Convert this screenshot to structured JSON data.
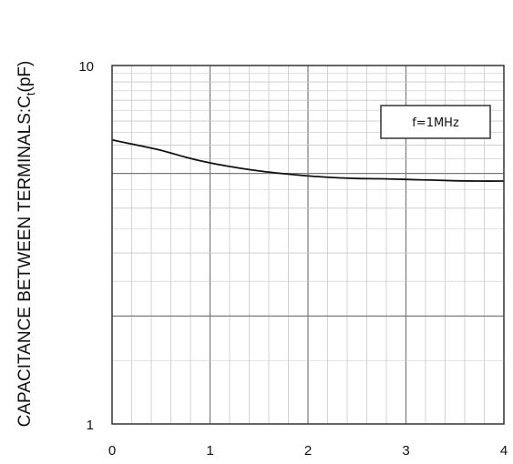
{
  "chart_data": {
    "type": "line",
    "title": "",
    "xlabel": "",
    "ylabel_main": "CAPACITANCE BETWEEN TERMINALS:C",
    "ylabel_sub": "t",
    "ylabel_unit": "(pF)",
    "x_scale": "linear",
    "y_scale": "log",
    "xlim": [
      0,
      4
    ],
    "ylim": [
      1,
      10
    ],
    "x_ticks": [
      "0",
      "1",
      "2",
      "3",
      "4"
    ],
    "y_ticks": [
      "1",
      "10"
    ],
    "grid": true,
    "legend_placement": "top-right",
    "annotation": "f=1MHz",
    "series": [
      {
        "x": [
          0,
          0.25,
          0.5,
          0.75,
          1.0,
          1.25,
          1.5,
          1.75,
          2.0,
          2.25,
          2.5,
          2.75,
          3.0,
          3.25,
          3.5,
          3.75,
          4.0
        ],
        "y": [
          6.2,
          6.0,
          5.8,
          5.55,
          5.35,
          5.2,
          5.08,
          4.99,
          4.92,
          4.87,
          4.84,
          4.83,
          4.81,
          4.79,
          4.77,
          4.76,
          4.76
        ]
      }
    ]
  },
  "colors": {
    "line": "#111111",
    "major_grid": "#7a7a7a",
    "minor_grid": "#c8c8c8",
    "frame": "#333333"
  }
}
